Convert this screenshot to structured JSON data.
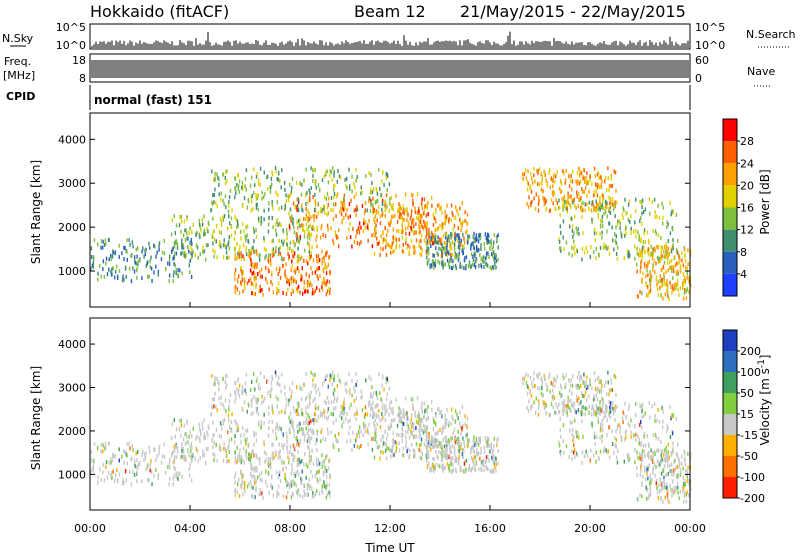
{
  "header": {
    "station": "Hokkaido (fitACF)",
    "beam": "Beam 12",
    "date_range": "21/May/2015 - 22/May/2015"
  },
  "nsky_panel": {
    "left_label": "N.Sky",
    "right_label": "N.Search",
    "ticks": [
      "10^5",
      "10^0"
    ]
  },
  "freq_panel": {
    "left_label_top": "Freq.",
    "left_label_bottom": "[MHz]",
    "left_ticks": [
      "18",
      "8"
    ],
    "right_label": "Nave",
    "right_ticks": [
      "60",
      "0"
    ]
  },
  "cpid_panel": {
    "label": "CPID",
    "text": "normal (fast) 151"
  },
  "chart_data": [
    {
      "type": "heatmap",
      "quantity": "Power",
      "ylabel": "Slant Range [km]",
      "ylim": [
        180,
        4600
      ],
      "y_ticks": [
        1000,
        2000,
        3000,
        4000
      ],
      "colorbar_label": "Power [dB]",
      "colorbar_ticks": [
        "4",
        "8",
        "12",
        "16",
        "20",
        "24",
        "28"
      ],
      "colorbar_range": [
        0,
        32
      ],
      "colors": [
        "#1f3fff",
        "#2b5fbf",
        "#3f8f6f",
        "#7fbf3f",
        "#e0d000",
        "#ff9f00",
        "#ff5f00",
        "#ff0000"
      ]
    },
    {
      "type": "heatmap",
      "quantity": "Velocity",
      "xlabel": "Time UT",
      "ylabel": "Slant Range [km]",
      "ylim": [
        180,
        4600
      ],
      "y_ticks": [
        1000,
        2000,
        3000,
        4000
      ],
      "x_ticks": [
        "00:00",
        "04:00",
        "08:00",
        "12:00",
        "16:00",
        "20:00",
        "00:00"
      ],
      "colorbar_label": "Velocity [m s^-1]",
      "colorbar_ticks": [
        "200",
        "100",
        "50",
        "15",
        "-15",
        "-50",
        "-100",
        "-200"
      ],
      "colors": [
        "#1f3fbf",
        "#2f6fbf",
        "#3f9f5f",
        "#7fcf3f",
        "#c8c8c8",
        "#ffaf00",
        "#ff6f00",
        "#ff1f00"
      ]
    }
  ]
}
